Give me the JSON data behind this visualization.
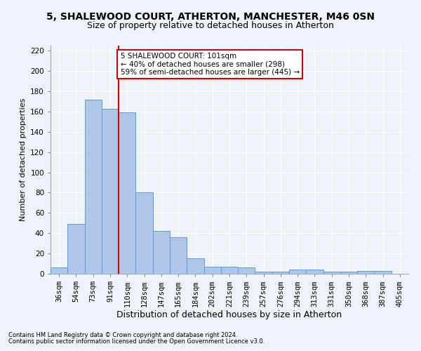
{
  "title_line1": "5, SHALEWOOD COURT, ATHERTON, MANCHESTER, M46 0SN",
  "title_line2": "Size of property relative to detached houses in Atherton",
  "xlabel": "Distribution of detached houses by size in Atherton",
  "ylabel": "Number of detached properties",
  "categories": [
    "36sqm",
    "54sqm",
    "73sqm",
    "91sqm",
    "110sqm",
    "128sqm",
    "147sqm",
    "165sqm",
    "184sqm",
    "202sqm",
    "221sqm",
    "239sqm",
    "257sqm",
    "276sqm",
    "294sqm",
    "313sqm",
    "331sqm",
    "350sqm",
    "368sqm",
    "387sqm",
    "405sqm"
  ],
  "values": [
    6,
    49,
    172,
    163,
    159,
    80,
    42,
    36,
    15,
    7,
    7,
    6,
    2,
    2,
    4,
    4,
    2,
    2,
    3,
    3,
    0
  ],
  "bar_color": "#aec6e8",
  "bar_edge_color": "#5b9bd5",
  "vline_color": "#cc0000",
  "vline_position": 3.5,
  "annotation_text_line1": "5 SHALEWOOD COURT: 101sqm",
  "annotation_text_line2": "← 40% of detached houses are smaller (298)",
  "annotation_text_line3": "59% of semi-detached houses are larger (445) →",
  "annotation_box_color": "#ffffff",
  "annotation_box_edge_color": "#cc0000",
  "ylim": [
    0,
    225
  ],
  "yticks": [
    0,
    20,
    40,
    60,
    80,
    100,
    120,
    140,
    160,
    180,
    200,
    220
  ],
  "footnote1": "Contains HM Land Registry data © Crown copyright and database right 2024.",
  "footnote2": "Contains public sector information licensed under the Open Government Licence v3.0.",
  "background_color": "#eef2f9",
  "grid_color": "#ffffff",
  "title1_fontsize": 10,
  "title2_fontsize": 9,
  "ylabel_fontsize": 8,
  "xlabel_fontsize": 9,
  "tick_fontsize": 7.5,
  "annot_fontsize": 7.5,
  "footnote_fontsize": 6
}
